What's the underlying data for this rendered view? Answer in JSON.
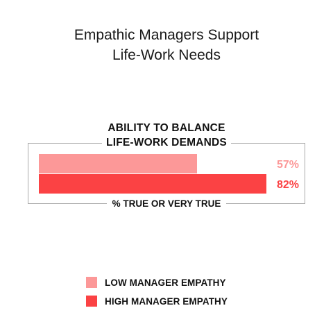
{
  "chart_data": {
    "type": "bar",
    "orientation": "horizontal",
    "title": [
      "Empathic Managers Support",
      "Life-Work Needs"
    ],
    "subtitle": [
      "ABILITY TO BALANCE",
      "LIFE-WORK DEMANDS"
    ],
    "xlabel": "% TRUE OR VERY TRUE",
    "xlim": [
      0,
      100
    ],
    "grid": false,
    "legend_placement": "bottom",
    "series": [
      {
        "name": "LOW MANAGER EMPATHY",
        "values": [
          57
        ],
        "label": "57%",
        "color": "#fc9898"
      },
      {
        "name": "HIGH MANAGER EMPATHY",
        "values": [
          82
        ],
        "label": "82%",
        "color": "#fb4244"
      }
    ]
  }
}
